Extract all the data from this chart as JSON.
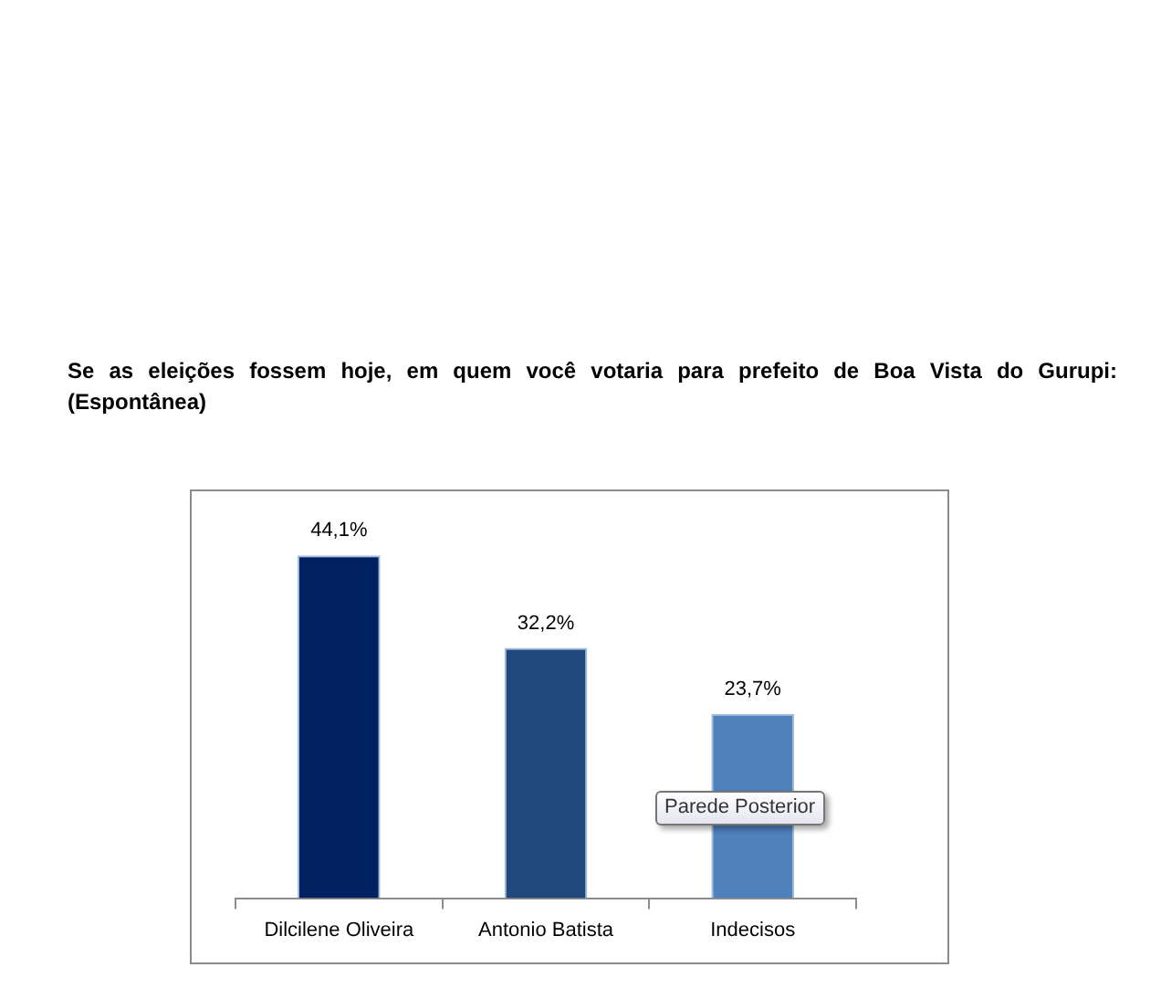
{
  "chart_data": {
    "type": "bar",
    "title": "Se as eleições fossem hoje, em quem você votaria para prefeito de Boa Vista do Gurupi: (Espontânea)",
    "categories": [
      "Dilcilene Oliveira",
      "Antonio Batista",
      "Indecisos"
    ],
    "values": [
      44.1,
      32.2,
      23.7
    ],
    "colors": [
      "#002060",
      "#1f497d",
      "#4f81bd"
    ],
    "value_labels": [
      "44,1%",
      "32,2%",
      "23,7%"
    ],
    "tick_labels": "x",
    "annotations": [
      "Parede Posterior"
    ]
  }
}
